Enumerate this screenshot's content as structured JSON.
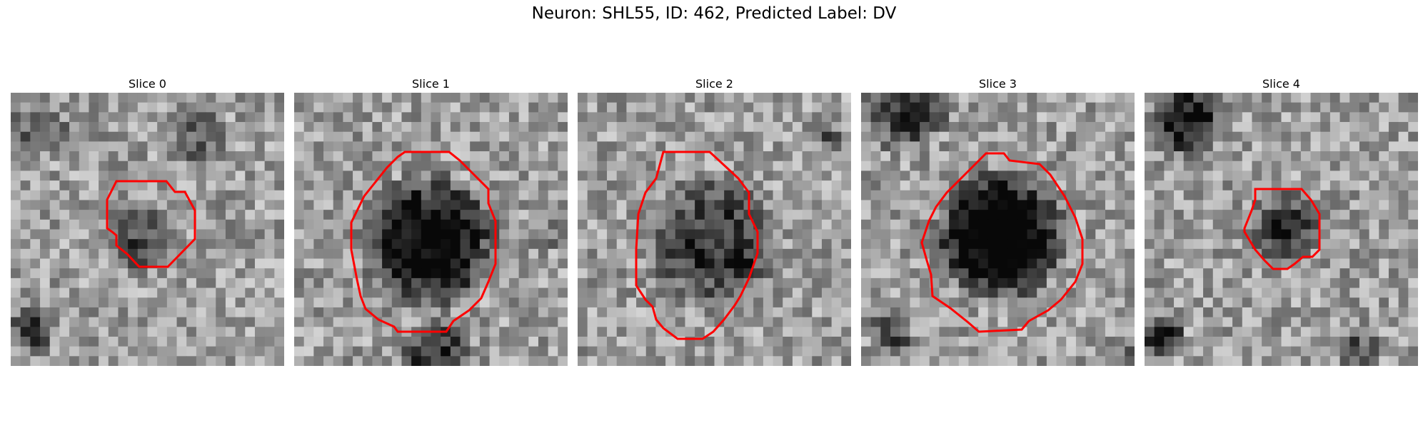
{
  "figure": {
    "title": "Neuron: SHL55, ID: 462, Predicted Label: DV"
  },
  "colors": {
    "contour": "#ff0000",
    "background": "#ffffff"
  },
  "slices": [
    {
      "title": "Slice 0",
      "dark_blob": "small, lower-center, faint",
      "outline": "small ROI contour"
    },
    {
      "title": "Slice 1",
      "dark_blob": "large dark soma, centered",
      "outline": "large ROI contour"
    },
    {
      "title": "Slice 2",
      "dark_blob": "large mottled soma, centered",
      "outline": "large ROI contour"
    },
    {
      "title": "Slice 3",
      "dark_blob": "large very dark soma, centered",
      "outline": "large ROI contour"
    },
    {
      "title": "Slice 4",
      "dark_blob": "small, right-of-center",
      "outline": "small ROI contour"
    }
  ]
}
